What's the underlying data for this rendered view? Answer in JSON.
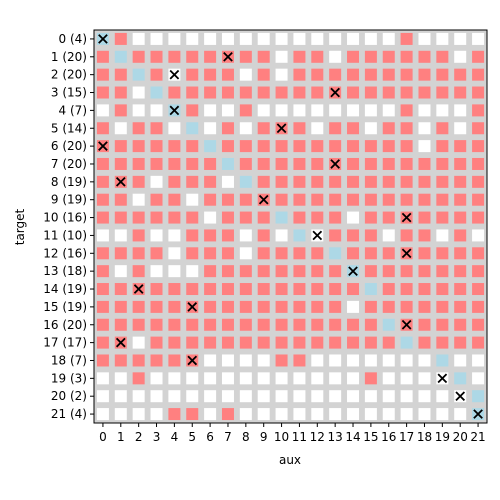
{
  "chart_data": {
    "type": "heatmap",
    "xlabel": "aux",
    "ylabel": "target",
    "x_ticks": [
      "0",
      "1",
      "2",
      "3",
      "4",
      "5",
      "6",
      "7",
      "8",
      "9",
      "10",
      "11",
      "12",
      "13",
      "14",
      "15",
      "16",
      "17",
      "18",
      "19",
      "20",
      "21"
    ],
    "y_ticks": [
      "0 (4)",
      "1 (20)",
      "2 (20)",
      "3 (15)",
      "4 (7)",
      "5 (14)",
      "6 (20)",
      "7 (20)",
      "8 (19)",
      "9 (19)",
      "10 (16)",
      "11 (10)",
      "12 (16)",
      "13 (18)",
      "14 (19)",
      "15 (19)",
      "16 (20)",
      "17 (17)",
      "18 (7)",
      "19 (3)",
      "20 (2)",
      "21 (4)"
    ],
    "legend_of_codes": {
      "0": "white",
      "1": "red",
      "2": "light blue"
    },
    "colors": {
      "background": "#d3d3d3",
      "white": "#ffffff",
      "red": "#ff8080",
      "blue": "#add8e6",
      "mark": "#000000"
    },
    "grid": [
      "2100000000000000010000",
      "1211111111011011111101",
      "1121011101011111111111",
      "1102111111111111111111",
      "0100210010000000010001",
      "1011020101110110110101",
      "1111112111111111110111",
      "1111111211111111111111",
      "1110111021111111111111",
      "1101101111111111111111",
      "1111110111211101111111",
      "0010011101020111011010",
      "1111011101111211111111",
      "1010001111111121111111",
      "1111111111111112111111",
      "1111111111111101111111",
      "1111111111111111211111",
      "1101111111111111121111",
      "1111110000110000000200",
      "0010000000000001000020",
      "0000000000000000000002",
      "0000110100000000000002"
    ],
    "marks": [
      [
        0,
        0
      ],
      [
        1,
        7
      ],
      [
        2,
        4
      ],
      [
        3,
        13
      ],
      [
        4,
        4
      ],
      [
        5,
        10
      ],
      [
        6,
        0
      ],
      [
        7,
        13
      ],
      [
        8,
        1
      ],
      [
        9,
        9
      ],
      [
        10,
        17
      ],
      [
        11,
        12
      ],
      [
        12,
        17
      ],
      [
        13,
        14
      ],
      [
        14,
        2
      ],
      [
        15,
        5
      ],
      [
        16,
        17
      ],
      [
        17,
        1
      ],
      [
        18,
        5
      ],
      [
        19,
        19
      ],
      [
        20,
        20
      ],
      [
        21,
        21
      ]
    ]
  }
}
